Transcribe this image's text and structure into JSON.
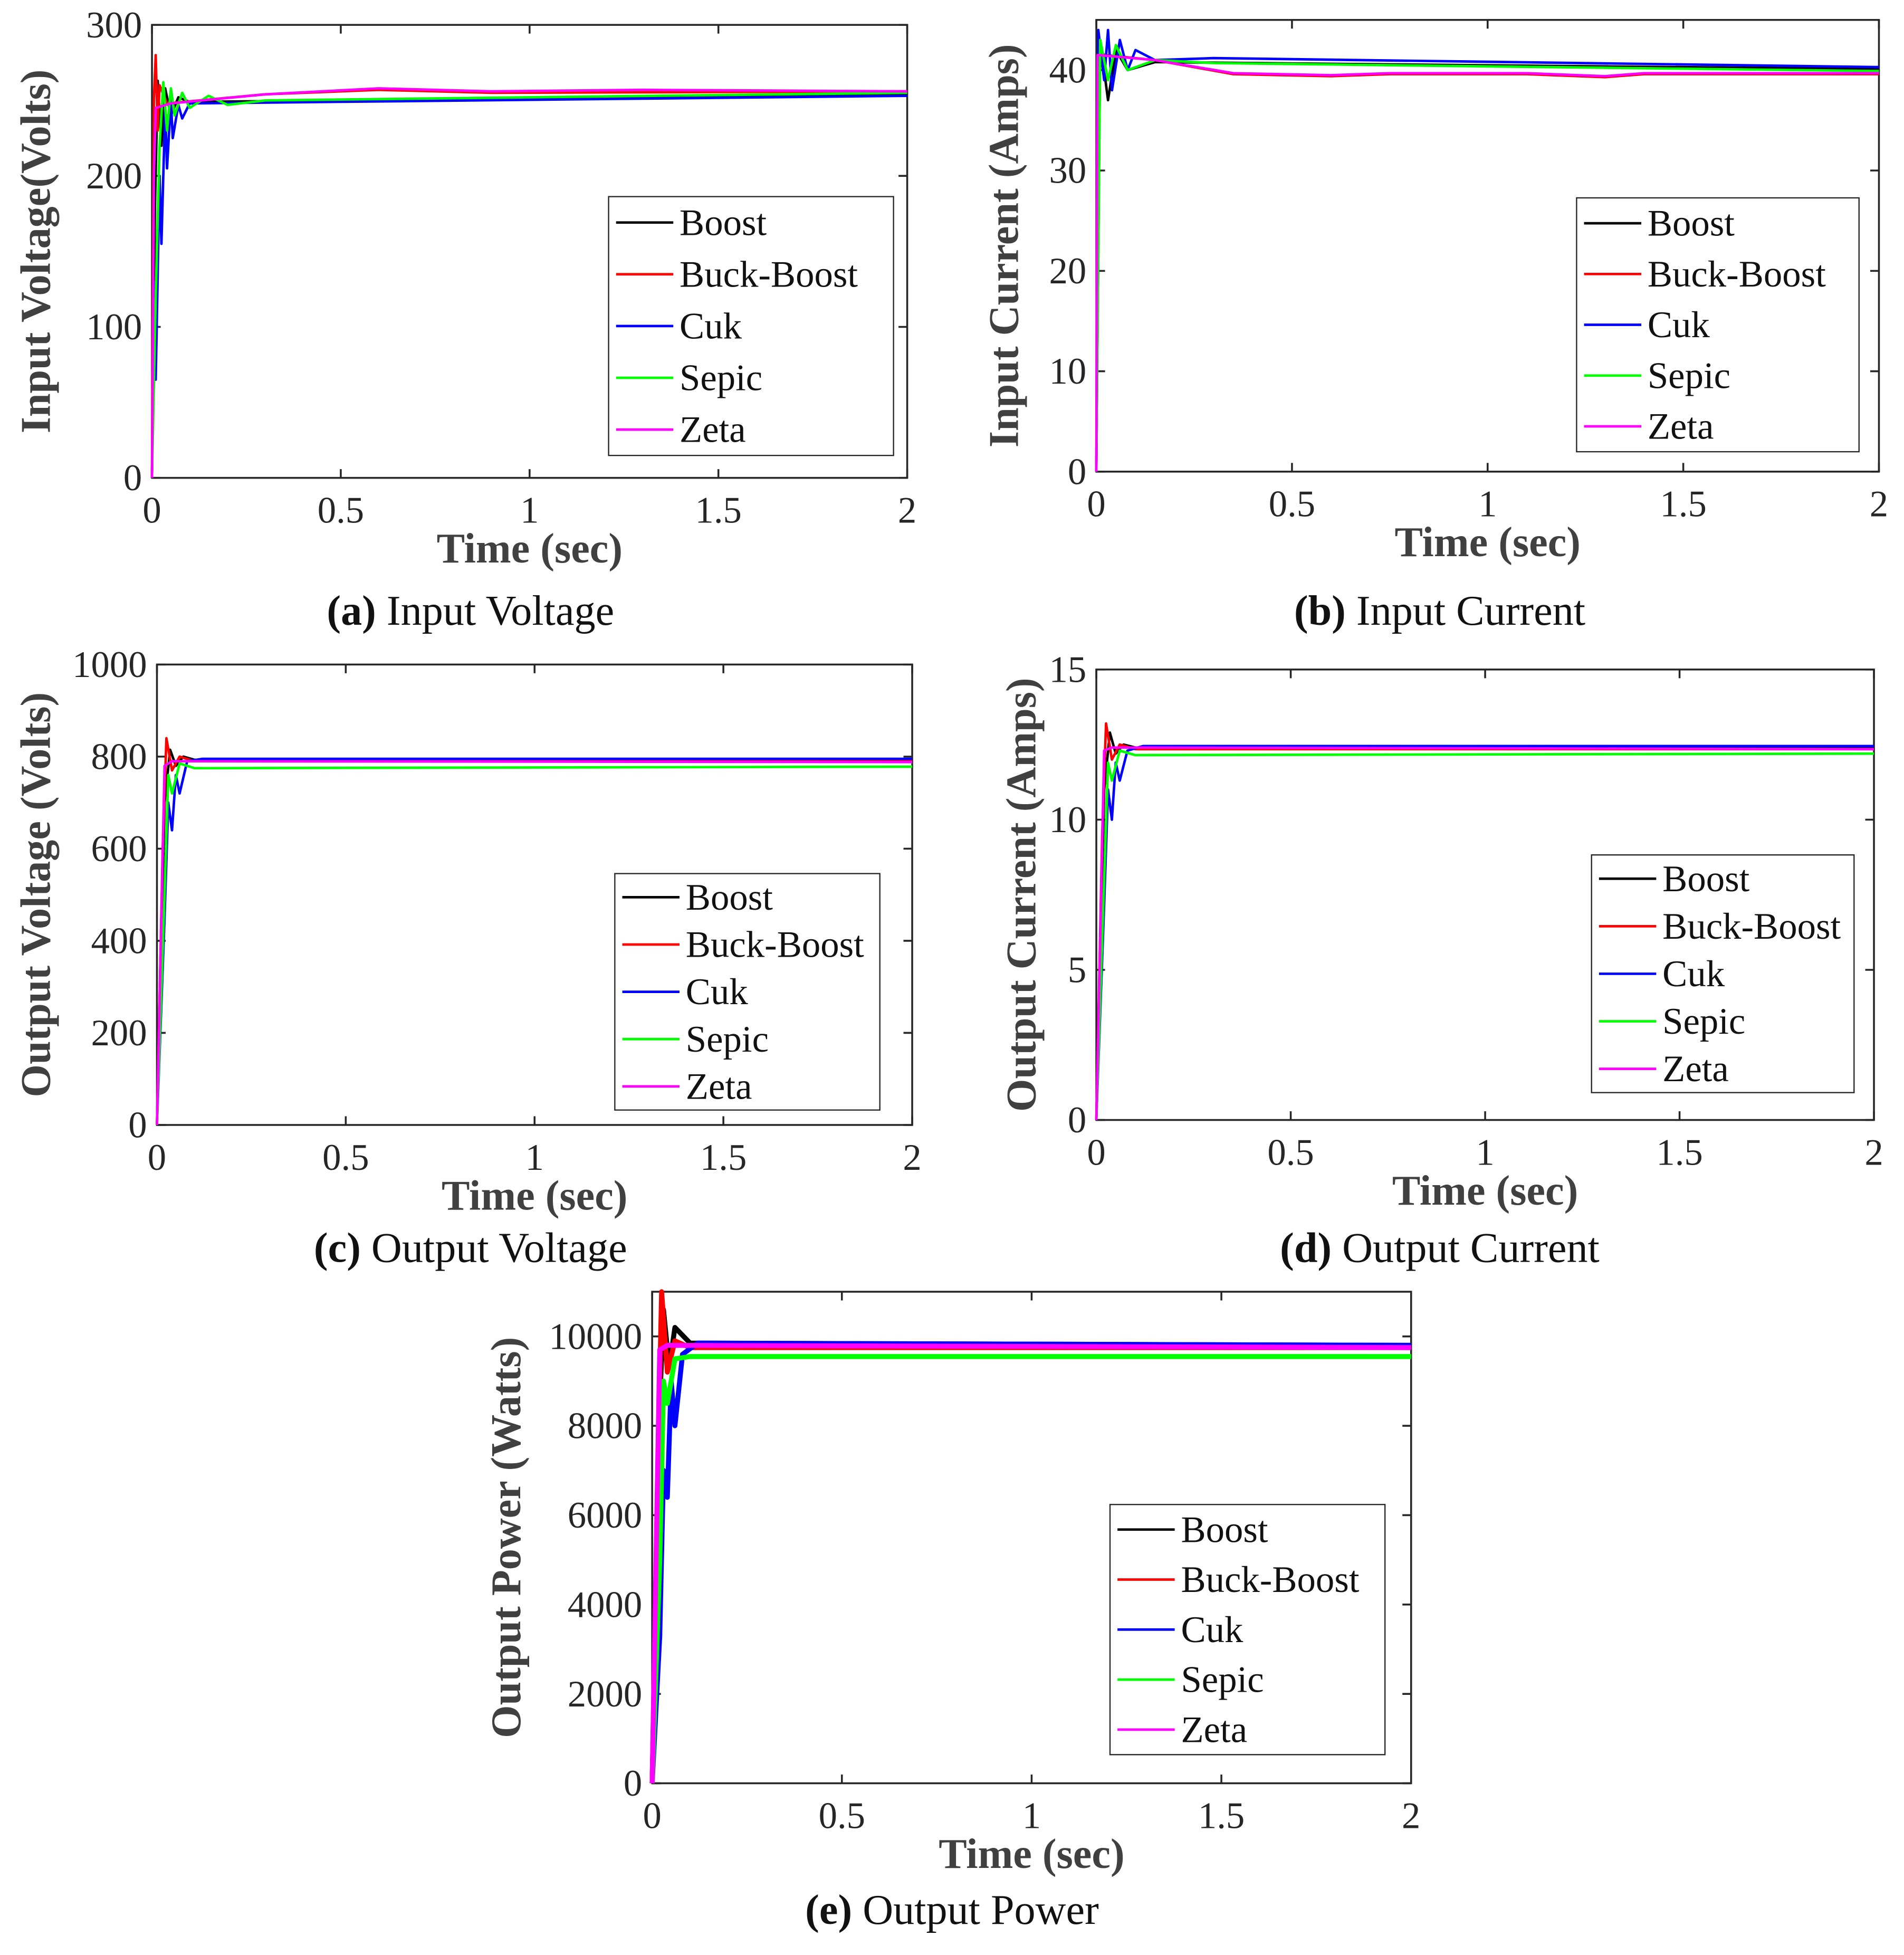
{
  "colors": {
    "Boost": "#000000",
    "Buck-Boost": "#ff0000",
    "Cuk": "#0000ff",
    "Sepic": "#00ff00",
    "Zeta": "#ff00ff"
  },
  "chart_data": [
    {
      "type": "line",
      "id": "a",
      "caption_letter": "(a)",
      "caption_text": " Input Voltage",
      "xlabel": "Time (sec)",
      "ylabel": "Input Voltage(Volts)",
      "xlim": [
        0,
        2
      ],
      "ylim": [
        0,
        300
      ],
      "xticks": [
        "0",
        "0.5",
        "1",
        "1.5",
        "2"
      ],
      "yticks": [
        "0",
        "100",
        "200",
        "300"
      ],
      "legend": [
        "Boost",
        "Buck-Boost",
        "Cuk",
        "Sepic",
        "Zeta"
      ],
      "legend_position": "center-right",
      "series": [
        {
          "name": "Boost",
          "t": [
            0,
            0.008,
            0.015,
            0.025,
            0.035,
            0.05,
            0.07,
            0.1,
            2
          ],
          "y": [
            0,
            180,
            263,
            220,
            258,
            240,
            252,
            249,
            254
          ]
        },
        {
          "name": "Buck-Boost",
          "t": [
            0,
            0.005,
            0.01,
            0.015,
            0.02,
            0.04,
            0.3,
            0.6,
            0.9,
            2
          ],
          "y": [
            0,
            250,
            280,
            230,
            260,
            248,
            254,
            257,
            255,
            256
          ]
        },
        {
          "name": "Cuk",
          "t": [
            0,
            0.005,
            0.01,
            0.02,
            0.025,
            0.035,
            0.04,
            0.05,
            0.055,
            0.07,
            0.08,
            0.1,
            2
          ],
          "y": [
            0,
            130,
            65,
            200,
            155,
            245,
            205,
            250,
            225,
            247,
            238,
            248,
            253
          ]
        },
        {
          "name": "Sepic",
          "t": [
            0,
            0.01,
            0.02,
            0.03,
            0.04,
            0.05,
            0.06,
            0.08,
            0.1,
            0.15,
            0.2,
            0.3,
            2
          ],
          "y": [
            0,
            120,
            220,
            262,
            230,
            258,
            240,
            255,
            245,
            253,
            247,
            250,
            255
          ]
        },
        {
          "name": "Zeta",
          "t": [
            0,
            0.005,
            0.01,
            0.05,
            0.3,
            0.6,
            0.9,
            1.3,
            2
          ],
          "y": [
            0,
            200,
            245,
            248,
            254,
            258,
            256,
            257,
            256
          ]
        }
      ]
    },
    {
      "type": "line",
      "id": "b",
      "caption_letter": "(b)",
      "caption_text": " Input Current",
      "xlabel": "Time (sec)",
      "ylabel": "Input Current (Amps)",
      "xlim": [
        0,
        2
      ],
      "ylim": [
        0,
        45
      ],
      "xticks": [
        "0",
        "0.5",
        "1",
        "1.5",
        "2"
      ],
      "yticks": [
        "0",
        "10",
        "20",
        "30",
        "40"
      ],
      "legend": [
        "Boost",
        "Buck-Boost",
        "Cuk",
        "Sepic",
        "Zeta"
      ],
      "legend_position": "center-right",
      "series": [
        {
          "name": "Boost",
          "t": [
            0,
            0.01,
            0.03,
            0.05,
            0.08,
            0.15,
            2
          ],
          "y": [
            0,
            43,
            37,
            42,
            40,
            40.8,
            40.1
          ]
        },
        {
          "name": "Buck-Boost",
          "t": [
            0,
            0.005,
            0.01,
            0.02,
            0.15,
            0.35,
            0.6,
            0.75,
            1.1,
            1.3,
            1.4,
            2
          ],
          "y": [
            0,
            28,
            42,
            41.5,
            41,
            39.6,
            39.4,
            39.6,
            39.6,
            39.3,
            39.6,
            39.6
          ]
        },
        {
          "name": "Cuk",
          "t": [
            0,
            0.005,
            0.02,
            0.03,
            0.04,
            0.06,
            0.08,
            0.1,
            0.15,
            0.3,
            2
          ],
          "y": [
            0,
            44,
            39,
            44,
            38,
            43,
            40,
            42,
            41,
            41.2,
            40.3
          ]
        },
        {
          "name": "Sepic",
          "t": [
            0,
            0.01,
            0.03,
            0.05,
            0.08,
            0.15,
            0.3,
            2
          ],
          "y": [
            0,
            43,
            39,
            42.5,
            40,
            41,
            40.7,
            39.9
          ]
        },
        {
          "name": "Zeta",
          "t": [
            0,
            0.003,
            0.15,
            0.35,
            0.6,
            0.75,
            1.1,
            1.3,
            1.4,
            2
          ],
          "y": [
            0,
            41.5,
            41,
            39.7,
            39.5,
            39.7,
            39.7,
            39.4,
            39.7,
            39.7
          ]
        }
      ]
    },
    {
      "type": "line",
      "id": "c",
      "caption_letter": "(c)",
      "caption_text": " Output Voltage",
      "xlabel": "Time (sec)",
      "ylabel": "Output Voltage (Volts)",
      "xlim": [
        0,
        2
      ],
      "ylim": [
        0,
        1000
      ],
      "xticks": [
        "0",
        "0.5",
        "1",
        "1.5",
        "2"
      ],
      "yticks": [
        "0",
        "200",
        "400",
        "600",
        "800",
        "1000"
      ],
      "legend": [
        "Boost",
        "Buck-Boost",
        "Cuk",
        "Sepic",
        "Zeta"
      ],
      "legend_position": "bottom-right",
      "series": [
        {
          "name": "Boost",
          "t": [
            0,
            0.02,
            0.035,
            0.05,
            0.07,
            0.1,
            2
          ],
          "y": [
            0,
            700,
            815,
            780,
            800,
            793,
            793
          ]
        },
        {
          "name": "Buck-Boost",
          "t": [
            0,
            0.015,
            0.025,
            0.04,
            0.06,
            0.1,
            2
          ],
          "y": [
            0,
            600,
            840,
            770,
            800,
            790,
            790
          ]
        },
        {
          "name": "Cuk",
          "t": [
            0,
            0.02,
            0.03,
            0.04,
            0.05,
            0.06,
            0.08,
            0.12,
            2
          ],
          "y": [
            0,
            450,
            700,
            640,
            760,
            720,
            790,
            795,
            795
          ]
        },
        {
          "name": "Sepic",
          "t": [
            0,
            0.02,
            0.03,
            0.04,
            0.06,
            0.1,
            2
          ],
          "y": [
            0,
            500,
            760,
            720,
            785,
            775,
            778
          ]
        },
        {
          "name": "Zeta",
          "t": [
            0,
            0.02,
            0.04,
            2
          ],
          "y": [
            0,
            780,
            790,
            788
          ]
        }
      ]
    },
    {
      "type": "line",
      "id": "d",
      "caption_letter": "(d)",
      "caption_text": " Output Current",
      "xlabel": "Time (sec)",
      "ylabel": "Output Current (Amps)",
      "xlim": [
        0,
        2
      ],
      "ylim": [
        0,
        15
      ],
      "xticks": [
        "0",
        "0.5",
        "1",
        "1.5",
        "2"
      ],
      "yticks": [
        "0",
        "5",
        "10",
        "15"
      ],
      "legend": [
        "Boost",
        "Buck-Boost",
        "Cuk",
        "Sepic",
        "Zeta"
      ],
      "legend_position": "bottom-right",
      "series": [
        {
          "name": "Boost",
          "t": [
            0,
            0.02,
            0.035,
            0.05,
            0.07,
            0.1,
            2
          ],
          "y": [
            0,
            11,
            12.9,
            12.2,
            12.5,
            12.4,
            12.4
          ]
        },
        {
          "name": "Buck-Boost",
          "t": [
            0,
            0.015,
            0.025,
            0.04,
            0.06,
            0.1,
            2
          ],
          "y": [
            0,
            9.5,
            13.2,
            12,
            12.5,
            12.35,
            12.35
          ]
        },
        {
          "name": "Cuk",
          "t": [
            0,
            0.02,
            0.03,
            0.04,
            0.05,
            0.06,
            0.08,
            0.12,
            2
          ],
          "y": [
            0,
            7.2,
            11,
            10,
            11.9,
            11.3,
            12.3,
            12.45,
            12.45
          ]
        },
        {
          "name": "Sepic",
          "t": [
            0,
            0.02,
            0.03,
            0.04,
            0.06,
            0.1,
            2
          ],
          "y": [
            0,
            8,
            11.9,
            11.3,
            12.3,
            12.15,
            12.2
          ]
        },
        {
          "name": "Zeta",
          "t": [
            0,
            0.02,
            0.04,
            2
          ],
          "y": [
            0,
            12.3,
            12.4,
            12.35
          ]
        }
      ]
    },
    {
      "type": "line",
      "id": "e",
      "caption_letter": "(e)",
      "caption_text": " Output Power",
      "xlabel": "Time (sec)",
      "ylabel": "Output Power (Watts)",
      "xlim": [
        0,
        2
      ],
      "ylim": [
        0,
        11000
      ],
      "xticks": [
        "0",
        "0.5",
        "1",
        "1.5",
        "2"
      ],
      "yticks": [
        "0",
        "2000",
        "4000",
        "6000",
        "8000",
        "10000"
      ],
      "legend": [
        "Boost",
        "Buck-Boost",
        "Cuk",
        "Sepic",
        "Zeta"
      ],
      "legend_position": "bottom-right",
      "series": [
        {
          "name": "Boost",
          "t": [
            0,
            0.02,
            0.03,
            0.045,
            0.06,
            0.1,
            2
          ],
          "y": [
            0,
            8500,
            10600,
            9300,
            10200,
            9850,
            9800
          ]
        },
        {
          "name": "Buck-Boost",
          "t": [
            0,
            0.015,
            0.025,
            0.04,
            0.06,
            0.1,
            2
          ],
          "y": [
            0,
            7000,
            11000,
            9200,
            9900,
            9750,
            9750
          ]
        },
        {
          "name": "Cuk",
          "t": [
            0,
            0.02,
            0.03,
            0.04,
            0.05,
            0.06,
            0.08,
            0.12,
            2
          ],
          "y": [
            0,
            3300,
            7000,
            6400,
            9000,
            8000,
            9600,
            9850,
            9800
          ]
        },
        {
          "name": "Sepic",
          "t": [
            0,
            0.02,
            0.03,
            0.04,
            0.06,
            0.1,
            2
          ],
          "y": [
            0,
            5000,
            9000,
            8500,
            9500,
            9550,
            9550
          ]
        },
        {
          "name": "Zeta",
          "t": [
            0,
            0.02,
            0.04,
            2
          ],
          "y": [
            0,
            9700,
            9800,
            9750
          ]
        }
      ]
    }
  ]
}
